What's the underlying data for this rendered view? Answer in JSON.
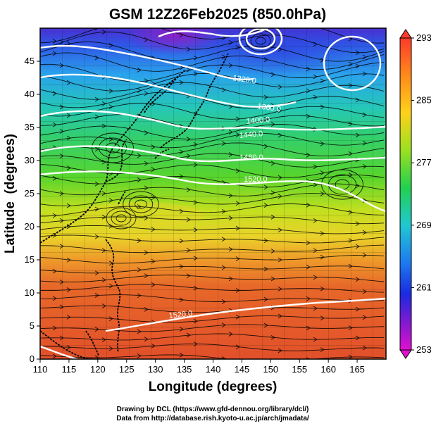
{
  "title": "GSM 12Z26Feb2025 (850.0hPa)",
  "xlabel": "Longitude (degrees)",
  "ylabel": "Latitude  (degrees)",
  "xticks": [
    "110",
    "115",
    "120",
    "125",
    "130",
    "135",
    "140",
    "145",
    "150",
    "155",
    "160",
    "165"
  ],
  "yticks": [
    "0",
    "5",
    "10",
    "15",
    "20",
    "25",
    "30",
    "35",
    "40",
    "45"
  ],
  "colorbar_ticks": [
    "293",
    "285",
    "277",
    "269",
    "261",
    "253"
  ],
  "contour_labels": [
    "1320.0",
    "1360.0",
    "1400.0",
    "1440.0",
    "1480.0",
    "1520.0",
    "1520.0"
  ],
  "credits": {
    "line1": "Drawing by DCL (https://www.gfd-dennou.org/library/dcl/)",
    "line2": "Data from http://database.rish.kyoto-u.ac.jp/arch/jmadata/"
  }
}
